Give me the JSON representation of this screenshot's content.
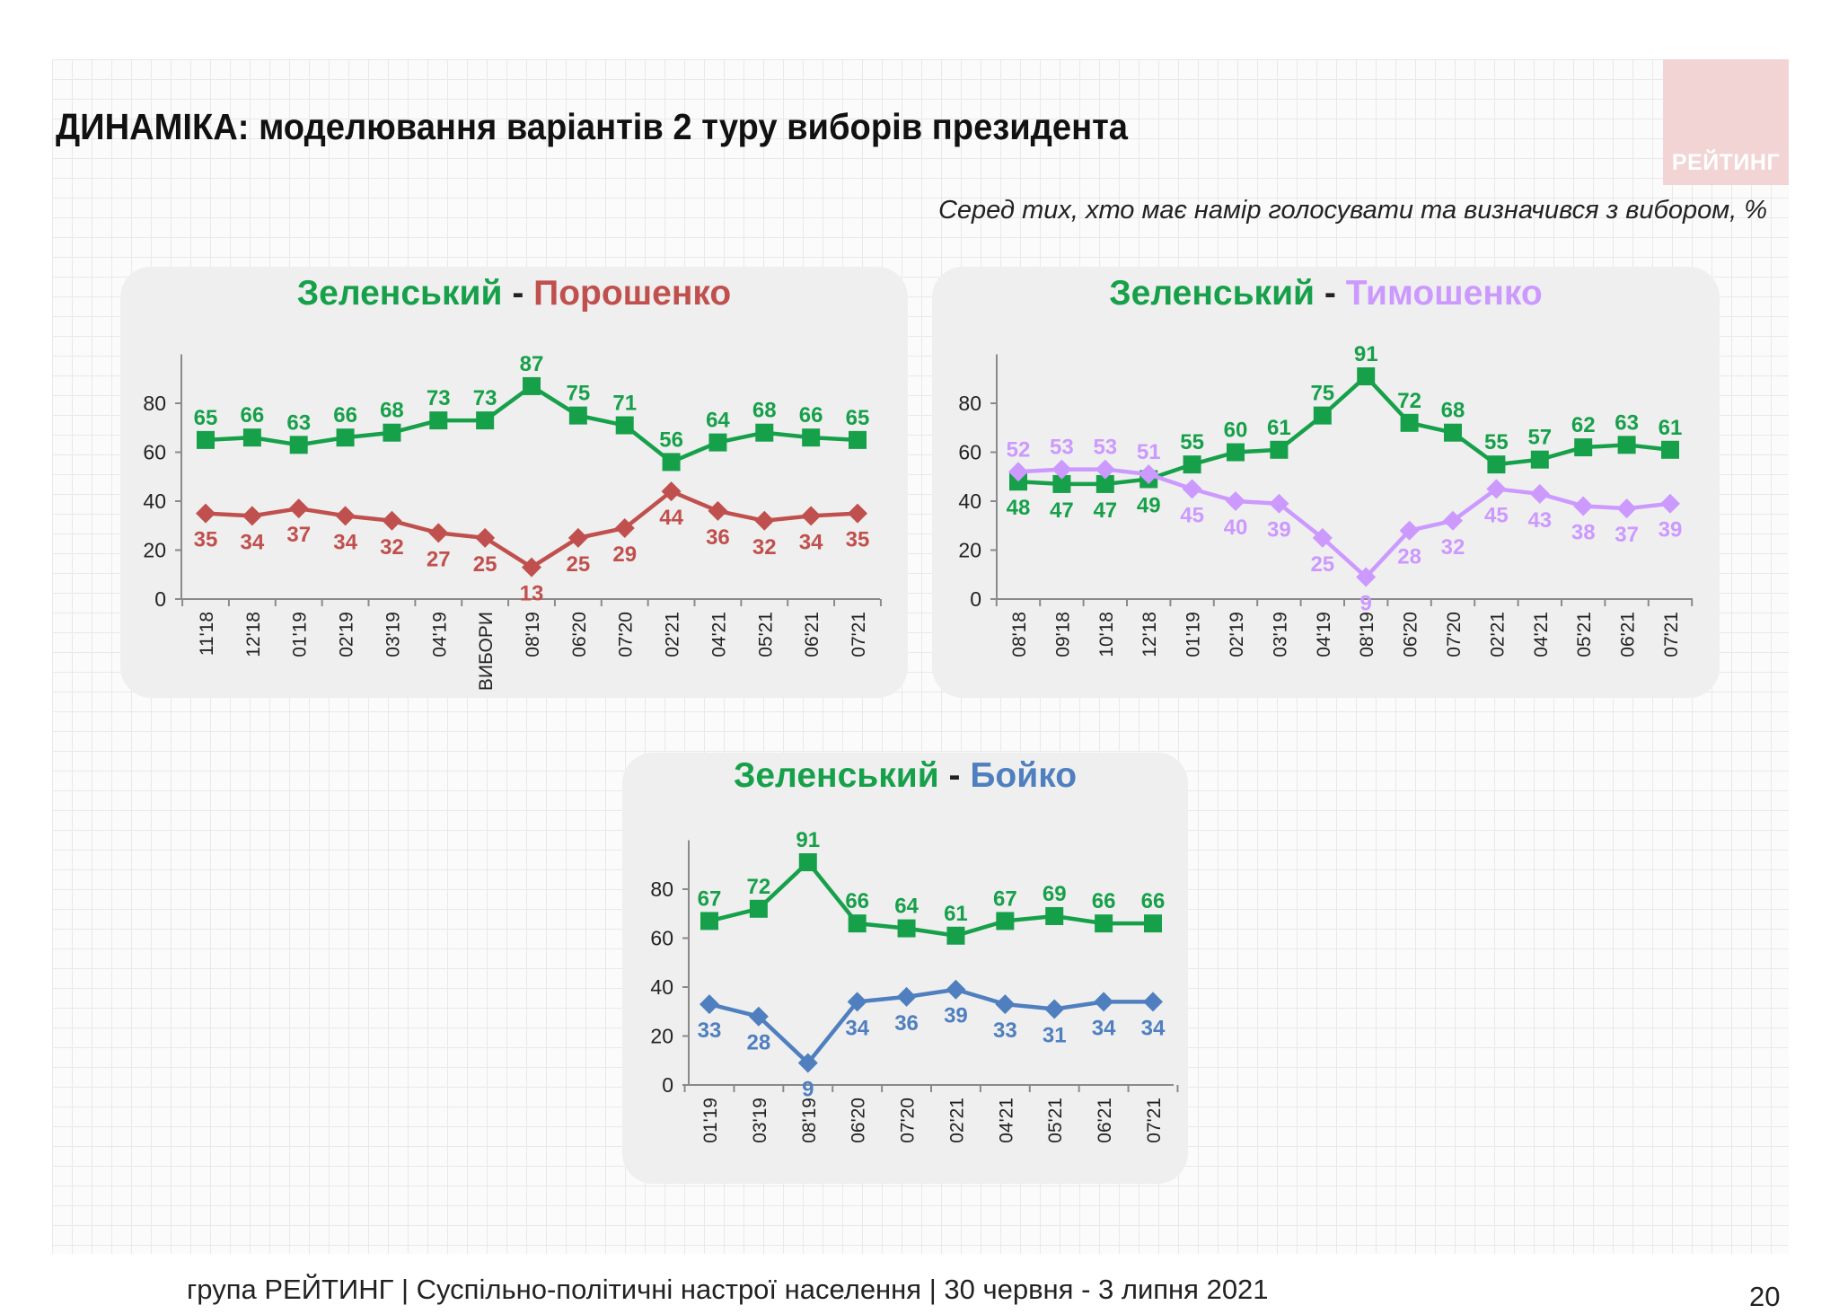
{
  "title": "ДИНАМІКА: моделювання варіантів 2 туру виборів президента",
  "subtitle": "Серед тих, хто має намір голосувати  та визначився з вибором, %",
  "logo_text": "РЕЙТИНГ",
  "footer": "група РЕЙТИНГ | Суспільно-політичні настрої населення  | 30 червня - 3 липня 2021",
  "page_number": "20",
  "colors": {
    "zelensky": "#17a04a",
    "poroshenko": "#c0504d",
    "tymoshenko": "#cc99ff",
    "boyko": "#4f7fbf"
  },
  "chart_data": [
    {
      "type": "line",
      "title_parts": [
        "Зеленський",
        " - ",
        "Порошенко"
      ],
      "categories": [
        "11'18",
        "12'18",
        "01'19",
        "02'19",
        "03'19",
        "04'19",
        "ВИБОРИ",
        "08'19",
        "06'20",
        "07'20",
        "02'21",
        "04'21",
        "05'21",
        "06'21",
        "07'21"
      ],
      "series": [
        {
          "name": "Зеленський",
          "color": "#17a04a",
          "marker": "square",
          "values": [
            65,
            66,
            63,
            66,
            68,
            73,
            73,
            87,
            75,
            71,
            56,
            64,
            68,
            66,
            65
          ]
        },
        {
          "name": "Порошенко",
          "color": "#c0504d",
          "marker": "diamond",
          "values": [
            35,
            34,
            37,
            34,
            32,
            27,
            25,
            13,
            25,
            29,
            44,
            36,
            32,
            34,
            35
          ]
        }
      ],
      "y_ticks": [
        0,
        20,
        40,
        60,
        80
      ],
      "ylim": [
        0,
        100
      ]
    },
    {
      "type": "line",
      "title_parts": [
        "Зеленський",
        " - ",
        "Тимошенко"
      ],
      "categories": [
        "08'18",
        "09'18",
        "10'18",
        "12'18",
        "01'19",
        "02'19",
        "03'19",
        "04'19",
        "08'19",
        "06'20",
        "07'20",
        "02'21",
        "04'21",
        "05'21",
        "06'21",
        "07'21"
      ],
      "series": [
        {
          "name": "Зеленський",
          "color": "#17a04a",
          "marker": "square",
          "values": [
            48,
            47,
            47,
            49,
            55,
            60,
            61,
            75,
            91,
            72,
            68,
            55,
            57,
            62,
            63,
            61
          ]
        },
        {
          "name": "Тимошенко",
          "color": "#cc99ff",
          "marker": "diamond",
          "values": [
            52,
            53,
            53,
            51,
            45,
            40,
            39,
            25,
            9,
            28,
            32,
            45,
            43,
            38,
            37,
            39
          ]
        }
      ],
      "y_ticks": [
        0,
        20,
        40,
        60,
        80
      ],
      "ylim": [
        0,
        100
      ]
    },
    {
      "type": "line",
      "title_parts": [
        "Зеленський",
        " - ",
        "Бойко"
      ],
      "categories": [
        "01'19",
        "03'19",
        "08'19",
        "06'20",
        "07'20",
        "02'21",
        "04'21",
        "05'21",
        "06'21",
        "07'21"
      ],
      "series": [
        {
          "name": "Зеленський",
          "color": "#17a04a",
          "marker": "square",
          "values": [
            67,
            72,
            91,
            66,
            64,
            61,
            67,
            69,
            66,
            66
          ]
        },
        {
          "name": "Бойко",
          "color": "#4f7fbf",
          "marker": "diamond",
          "values": [
            33,
            28,
            9,
            34,
            36,
            39,
            33,
            31,
            34,
            34
          ]
        }
      ],
      "y_ticks": [
        0,
        20,
        40,
        60,
        80
      ],
      "ylim": [
        0,
        100
      ]
    }
  ]
}
